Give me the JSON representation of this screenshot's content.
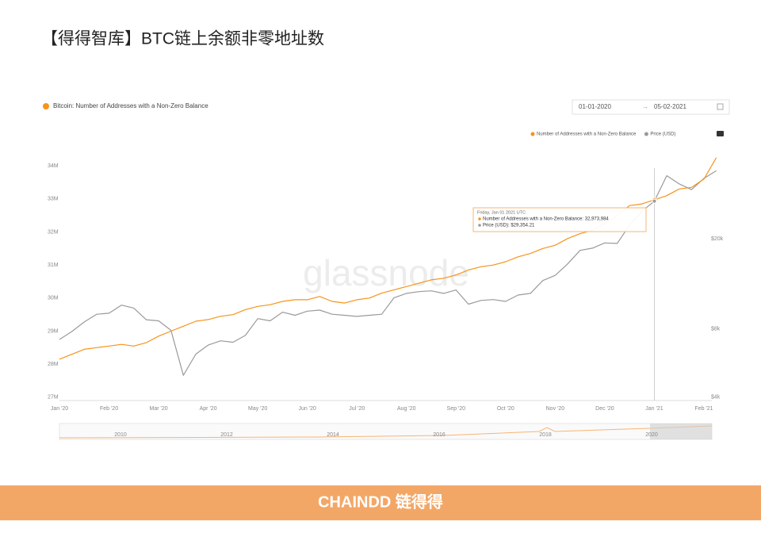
{
  "title": "【得得智库】BTC链上余额非零地址数",
  "footer": "CHAINDD 链得得",
  "chart_data": {
    "type": "line",
    "subtitle": "Bitcoin: Number of Addresses with a Non-Zero Balance",
    "date_range": [
      "01-01-2020",
      "05-02-2021"
    ],
    "watermark": "glassnode",
    "categories": [
      "Jan '20",
      null,
      null,
      null,
      "Feb '20",
      null,
      null,
      null,
      "Mar '20",
      null,
      null,
      null,
      "Apr '20",
      null,
      null,
      null,
      "May '20",
      null,
      null,
      null,
      "Jun '20",
      null,
      null,
      null,
      "Jul '20",
      null,
      null,
      null,
      "Aug '20",
      null,
      null,
      null,
      "Sep '20",
      null,
      null,
      null,
      "Oct '20",
      null,
      null,
      null,
      "Nov '20",
      null,
      null,
      null,
      "Dec '20",
      null,
      null,
      null,
      "Jan '21",
      null,
      null,
      null,
      "Feb '21",
      null
    ],
    "series": [
      {
        "name": "Number of Addresses with a Non-Zero Balance",
        "color": "#f7931a",
        "values": [
          28150000,
          28300000,
          28450000,
          28500000,
          28550000,
          28600000,
          28550000,
          28650000,
          28850000,
          29000000,
          29150000,
          29300000,
          29350000,
          29450000,
          29500000,
          29650000,
          29750000,
          29800000,
          29900000,
          29950000,
          29950000,
          30050000,
          29900000,
          29850000,
          29950000,
          30000000,
          30150000,
          30250000,
          30350000,
          30450000,
          30550000,
          30600000,
          30700000,
          30850000,
          30950000,
          31000000,
          31100000,
          31250000,
          31350000,
          31500000,
          31600000,
          31800000,
          31950000,
          32050000,
          32250000,
          32500000,
          32800000,
          32850000,
          32973984,
          33100000,
          33300000,
          33350000,
          33600000,
          34250000
        ]
      },
      {
        "name": "Price (USD)",
        "color": "#9a9a9a",
        "axis": "y2",
        "values": [
          7200,
          7800,
          8600,
          9300,
          9400,
          10200,
          9900,
          8800,
          8700,
          7900,
          5000,
          6200,
          6800,
          7100,
          7000,
          7500,
          8900,
          8700,
          9500,
          9200,
          9600,
          9700,
          9300,
          9200,
          9100,
          9200,
          9300,
          11000,
          11500,
          11700,
          11800,
          11500,
          11900,
          10300,
          10700,
          10800,
          10600,
          11300,
          11500,
          13100,
          13800,
          15500,
          17800,
          18200,
          19200,
          19100,
          23000,
          26500,
          29354.21,
          38000,
          35000,
          33000,
          37000,
          40000
        ]
      }
    ],
    "ylim": [
      26900000,
      34460000
    ],
    "yticks": [
      {
        "value": 27000000,
        "label": "27M"
      },
      {
        "value": 28000000,
        "label": "28M"
      },
      {
        "value": 29000000,
        "label": "29M"
      },
      {
        "value": 30000000,
        "label": "30M"
      },
      {
        "value": 31000000,
        "label": "31M"
      },
      {
        "value": 32000000,
        "label": "32M"
      },
      {
        "value": 33000000,
        "label": "33M"
      },
      {
        "value": 34000000,
        "label": "34M"
      }
    ],
    "y2lim": [
      3870,
      49000
    ],
    "y2scale": "log",
    "y2ticks": [
      {
        "value": 4000,
        "label": "$4k"
      },
      {
        "value": 8000,
        "label": "$8k"
      },
      {
        "value": 20000,
        "label": "$20k"
      }
    ],
    "grid": false,
    "tooltip": {
      "date": "Friday, Jan 01 2021 UTC",
      "items": [
        "Number of Addresses with a Non-Zero Balance: 32,973,984",
        "Price (USD): $29,354.21"
      ]
    },
    "navigator_labels": [
      "2010",
      "2012",
      "2014",
      "2016",
      "2018",
      "2020"
    ]
  }
}
